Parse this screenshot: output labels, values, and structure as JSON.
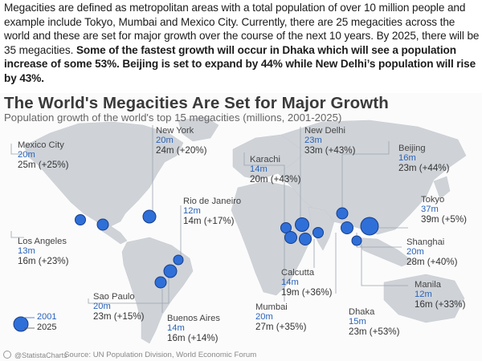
{
  "intro": {
    "normal_text": "Megacities are defined as metropolitan areas with a total population of over 10 million people and example include Tokyo, Mumbai and Mexico City. Currently, there are 25 megacities across the world and these are set for major growth over the course of the next 10 years. By 2025, there will be 35 megacities. ",
    "bold_text": "Some of the fastest growth will occur in Dhaka which will see a population increase of some 53%. Beijing is set to expand by 44% while New Delhi’s population will rise by 43%."
  },
  "infographic": {
    "title": "The World's Megacities Are Set for Major Growth",
    "subtitle": "Population growth of the world's top 15 megacities (millions, 2001-2025)",
    "colors": {
      "dot": "#2f6fd8",
      "dot_stroke": "#173d86",
      "map": "#cfd3d8",
      "leader": "#9aa4b0"
    },
    "cities": [
      {
        "name": "Mexico City",
        "pop_2001": "20m",
        "pop_2025": "25m (+25%)"
      },
      {
        "name": "New York",
        "pop_2001": "20m",
        "pop_2025": "24m (+20%)"
      },
      {
        "name": "Karachi",
        "pop_2001": "14m",
        "pop_2025": "20m (+43%)"
      },
      {
        "name": "New Delhi",
        "pop_2001": "23m",
        "pop_2025": "33m (+43%)"
      },
      {
        "name": "Beijing",
        "pop_2001": "16m",
        "pop_2025": "23m (+44%)"
      },
      {
        "name": "Tokyo",
        "pop_2001": "37m",
        "pop_2025": "39m (+5%)"
      },
      {
        "name": "Rio de Janeiro",
        "pop_2001": "12m",
        "pop_2025": "14m (+17%)"
      },
      {
        "name": "Los Angeles",
        "pop_2001": "13m",
        "pop_2025": "16m (+23%)"
      },
      {
        "name": "Shanghai",
        "pop_2001": "20m",
        "pop_2025": "28m (+40%)"
      },
      {
        "name": "Calcutta",
        "pop_2001": "14m",
        "pop_2025": "19m (+36%)"
      },
      {
        "name": "Manila",
        "pop_2001": "12m",
        "pop_2025": "16m (+33%)"
      },
      {
        "name": "Sao Paulo",
        "pop_2001": "20m",
        "pop_2025": "23m (+15%)"
      },
      {
        "name": "Mumbai",
        "pop_2001": "20m",
        "pop_2025": "27m (+35%)"
      },
      {
        "name": "Dhaka",
        "pop_2001": "15m",
        "pop_2025": "23m (+53%)"
      },
      {
        "name": "Buenos Aires",
        "pop_2001": "14m",
        "pop_2025": "16m (+14%)"
      }
    ],
    "legend": {
      "label_2001": "2001",
      "label_2025": "2025"
    },
    "footer": {
      "credit": "@StatistaCharts",
      "source": "Source: UN Population Division, World Economic Forum"
    }
  }
}
